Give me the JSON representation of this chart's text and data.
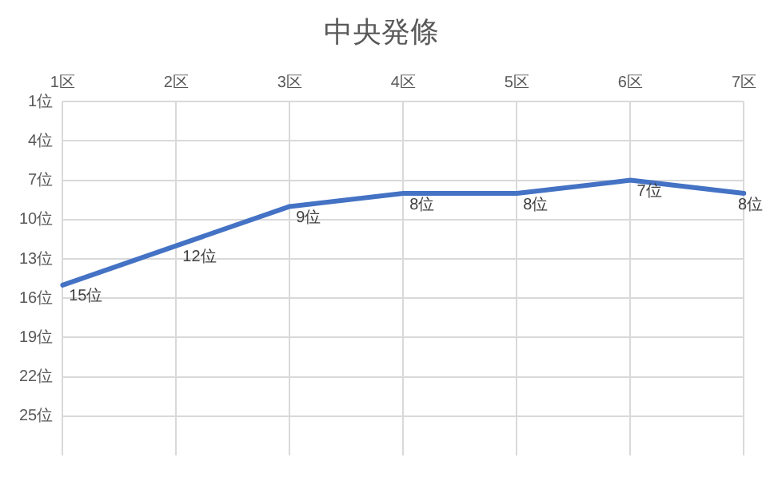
{
  "chart_data": {
    "type": "line",
    "title": "中央発條",
    "categories": [
      "1区",
      "2区",
      "3区",
      "4区",
      "5区",
      "6区",
      "7区"
    ],
    "series": [
      {
        "color": "#4472c4",
        "values": [
          15,
          12,
          9,
          8,
          8,
          7,
          8
        ],
        "value_labels": [
          "15位",
          "12位",
          "9位",
          "8位",
          "8位",
          "7位",
          "8位"
        ]
      }
    ],
    "ylim": [
      28,
      1
    ],
    "yticks": [
      {
        "value": 1,
        "label": "1位"
      },
      {
        "value": 4,
        "label": "4位"
      },
      {
        "value": 7,
        "label": "7位"
      },
      {
        "value": 10,
        "label": "10位"
      },
      {
        "value": 13,
        "label": "13位"
      },
      {
        "value": 16,
        "label": "16位"
      },
      {
        "value": 19,
        "label": "19位"
      },
      {
        "value": 22,
        "label": "22位"
      },
      {
        "value": 25,
        "label": "25位"
      }
    ],
    "grid": true,
    "legend": false,
    "marker": "none",
    "line_style": "solid"
  }
}
